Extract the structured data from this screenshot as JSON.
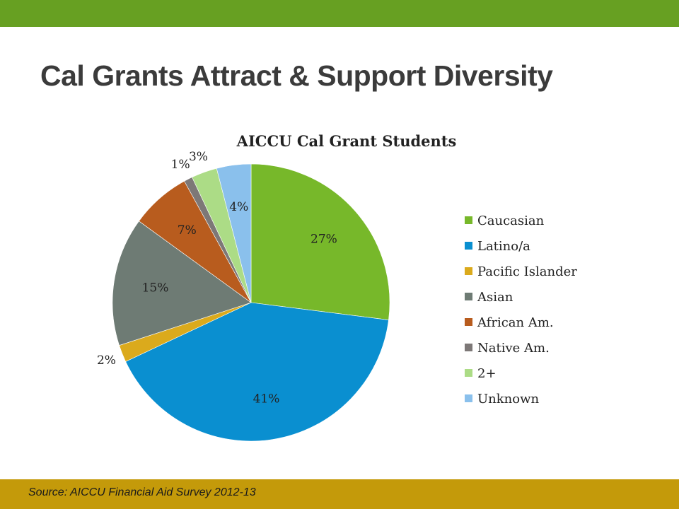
{
  "slide": {
    "title": "Cal Grants Attract & Support Diversity",
    "source": "Source: AICCU Financial Aid Survey 2012-13"
  },
  "colors": {
    "top_bar": "#67a022",
    "bottom_bar": "#c49a0a"
  },
  "chart_data": {
    "type": "pie",
    "title": "AICCU Cal Grant Students",
    "legend_position": "right",
    "start": "12 o'clock, clockwise",
    "slices": [
      {
        "label": "Caucasian",
        "value": 27,
        "display": "27%",
        "color": "#77b82a"
      },
      {
        "label": "Latino/a",
        "value": 41,
        "display": "41%",
        "color": "#0a8fd0"
      },
      {
        "label": "Pacific Islander",
        "value": 2,
        "display": "2%",
        "color": "#dbaa1c"
      },
      {
        "label": "Asian",
        "value": 15,
        "display": "15%",
        "color": "#6e7b74"
      },
      {
        "label": "African Am.",
        "value": 7,
        "display": "7%",
        "color": "#b85c1e"
      },
      {
        "label": "Native Am.",
        "value": 1,
        "display": "1%",
        "color": "#7d7877"
      },
      {
        "label": "2+",
        "value": 3,
        "display": "3%",
        "color": "#acdc86"
      },
      {
        "label": "Unknown",
        "value": 4,
        "display": "4%",
        "color": "#8ac0ec"
      }
    ]
  }
}
